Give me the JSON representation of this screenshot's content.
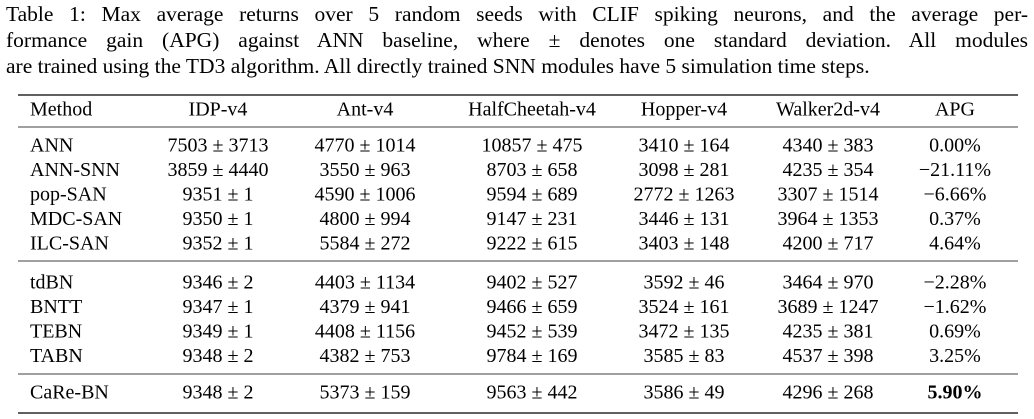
{
  "caption": [
    "Table 1: Max average returns over 5 random seeds with CLIF spiking neurons, and the average per-",
    "formance gain (APG) against ANN baseline, where ± denotes one standard deviation. All modules",
    "are trained using the TD3 algorithm. All directly trained SNN modules have 5 simulation time steps."
  ],
  "table": {
    "header": [
      "Method",
      "IDP-v4",
      "Ant-v4",
      "HalfCheetah-v4",
      "Hopper-v4",
      "Walker2d-v4",
      "APG"
    ],
    "groups": [
      [
        [
          "ANN",
          "7503 ± 3713",
          "4770 ± 1014",
          "10857 ± 475",
          "3410 ± 164",
          "4340 ± 383",
          "0.00%"
        ],
        [
          "ANN-SNN",
          "3859 ± 4440",
          "3550 ± 963",
          "8703 ± 658",
          "3098 ± 281",
          "4235 ± 354",
          "−21.11%"
        ],
        [
          "pop-SAN",
          "9351 ± 1",
          "4590 ± 1006",
          "9594 ± 689",
          "2772 ± 1263",
          "3307 ± 1514",
          "−6.66%"
        ],
        [
          "MDC-SAN",
          "9350 ± 1",
          "4800 ± 994",
          "9147 ± 231",
          "3446 ± 131",
          "3964 ± 1353",
          "0.37%"
        ],
        [
          "ILC-SAN",
          "9352 ± 1",
          "5584 ± 272",
          "9222 ± 615",
          "3403 ± 148",
          "4200 ± 717",
          "4.64%"
        ]
      ],
      [
        [
          "tdBN",
          "9346 ± 2",
          "4403 ± 1134",
          "9402 ± 527",
          "3592 ± 46",
          "3464 ± 970",
          "−2.28%"
        ],
        [
          "BNTT",
          "9347 ± 1",
          "4379 ± 941",
          "9466 ± 659",
          "3524 ± 161",
          "3689 ± 1247",
          "−1.62%"
        ],
        [
          "TEBN",
          "9349 ± 1",
          "4408 ± 1156",
          "9452 ± 539",
          "3472 ± 135",
          "4235 ± 381",
          "0.69%"
        ],
        [
          "TABN",
          "9348 ± 2",
          "4382 ± 753",
          "9784 ± 169",
          "3585 ± 83",
          "4537 ± 398",
          "3.25%"
        ]
      ],
      [
        [
          "CaRe-BN",
          "9348 ± 2",
          "5373 ± 159",
          "9563 ± 442",
          "3586 ± 49",
          "4296 ± 268",
          "5.90%"
        ]
      ]
    ]
  }
}
